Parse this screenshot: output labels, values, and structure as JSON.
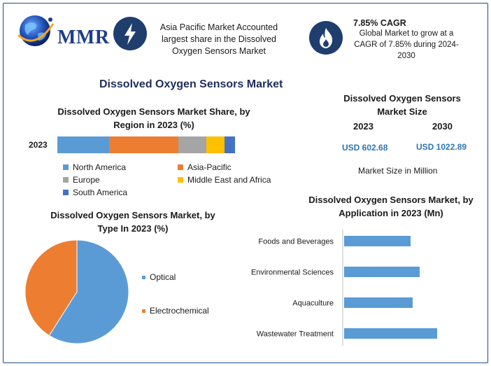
{
  "brand": {
    "logo_text": "MMR",
    "logo_icon": "globe-icon"
  },
  "highlights": [
    {
      "icon": "lightning-icon",
      "lines": [
        "Asia Pacific Market Accounted",
        "largest share in the Dissolved",
        "Oxygen Sensors Market"
      ]
    },
    {
      "icon": "flame-icon",
      "title": "7.85% CAGR",
      "lines": [
        "Global Market to grow at a",
        "CAGR of 7.85% during 2024-",
        "2030"
      ]
    }
  ],
  "main_title": "Dissolved Oxygen Sensors Market",
  "colors": {
    "blue": "#5b9bd5",
    "orange": "#ed7d31",
    "gray": "#a5a5a5",
    "yellow": "#ffc000",
    "darkblue": "#4472c4",
    "frame": "#1c4e80",
    "value_blue": "#2e75b6"
  },
  "chart_data": [
    {
      "type": "bar",
      "orientation": "horizontal-stacked",
      "title_lines": [
        "Dissolved Oxygen Sensors Market Share, by",
        "Region in 2023 (%)"
      ],
      "categories": [
        "2023"
      ],
      "series": [
        {
          "name": "North America",
          "values": [
            29
          ]
        },
        {
          "name": "Asia-Pacific",
          "values": [
            39
          ]
        },
        {
          "name": "Europe",
          "values": [
            16
          ]
        },
        {
          "name": "Middle East and Africa",
          "values": [
            10
          ]
        },
        {
          "name": "South America",
          "values": [
            6
          ]
        }
      ],
      "legend": "bottom"
    },
    {
      "type": "table",
      "title_lines": [
        "Dissolved Oxygen Sensors",
        "Market Size"
      ],
      "columns": [
        "2023",
        "2030"
      ],
      "values": [
        "USD 602.68",
        "USD 1022.89"
      ],
      "note": "Market Size in Million"
    },
    {
      "type": "pie",
      "title_lines": [
        "Dissolved Oxygen Sensors Market, by",
        "Type In 2023 (%)"
      ],
      "categories": [
        "Optical",
        "Electrochemical"
      ],
      "values": [
        59,
        41
      ],
      "legend": "right"
    },
    {
      "type": "bar",
      "orientation": "horizontal",
      "title_lines": [
        "Dissolved Oxygen Sensors Market, by",
        "Application in 2023 (Mn)"
      ],
      "categories": [
        "Foods and Beverages",
        "Environmental Sciences",
        "Aquaculture",
        "Wastewater Treatment"
      ],
      "values": [
        95,
        108,
        98,
        133
      ],
      "xlim": [
        0,
        140
      ]
    }
  ]
}
